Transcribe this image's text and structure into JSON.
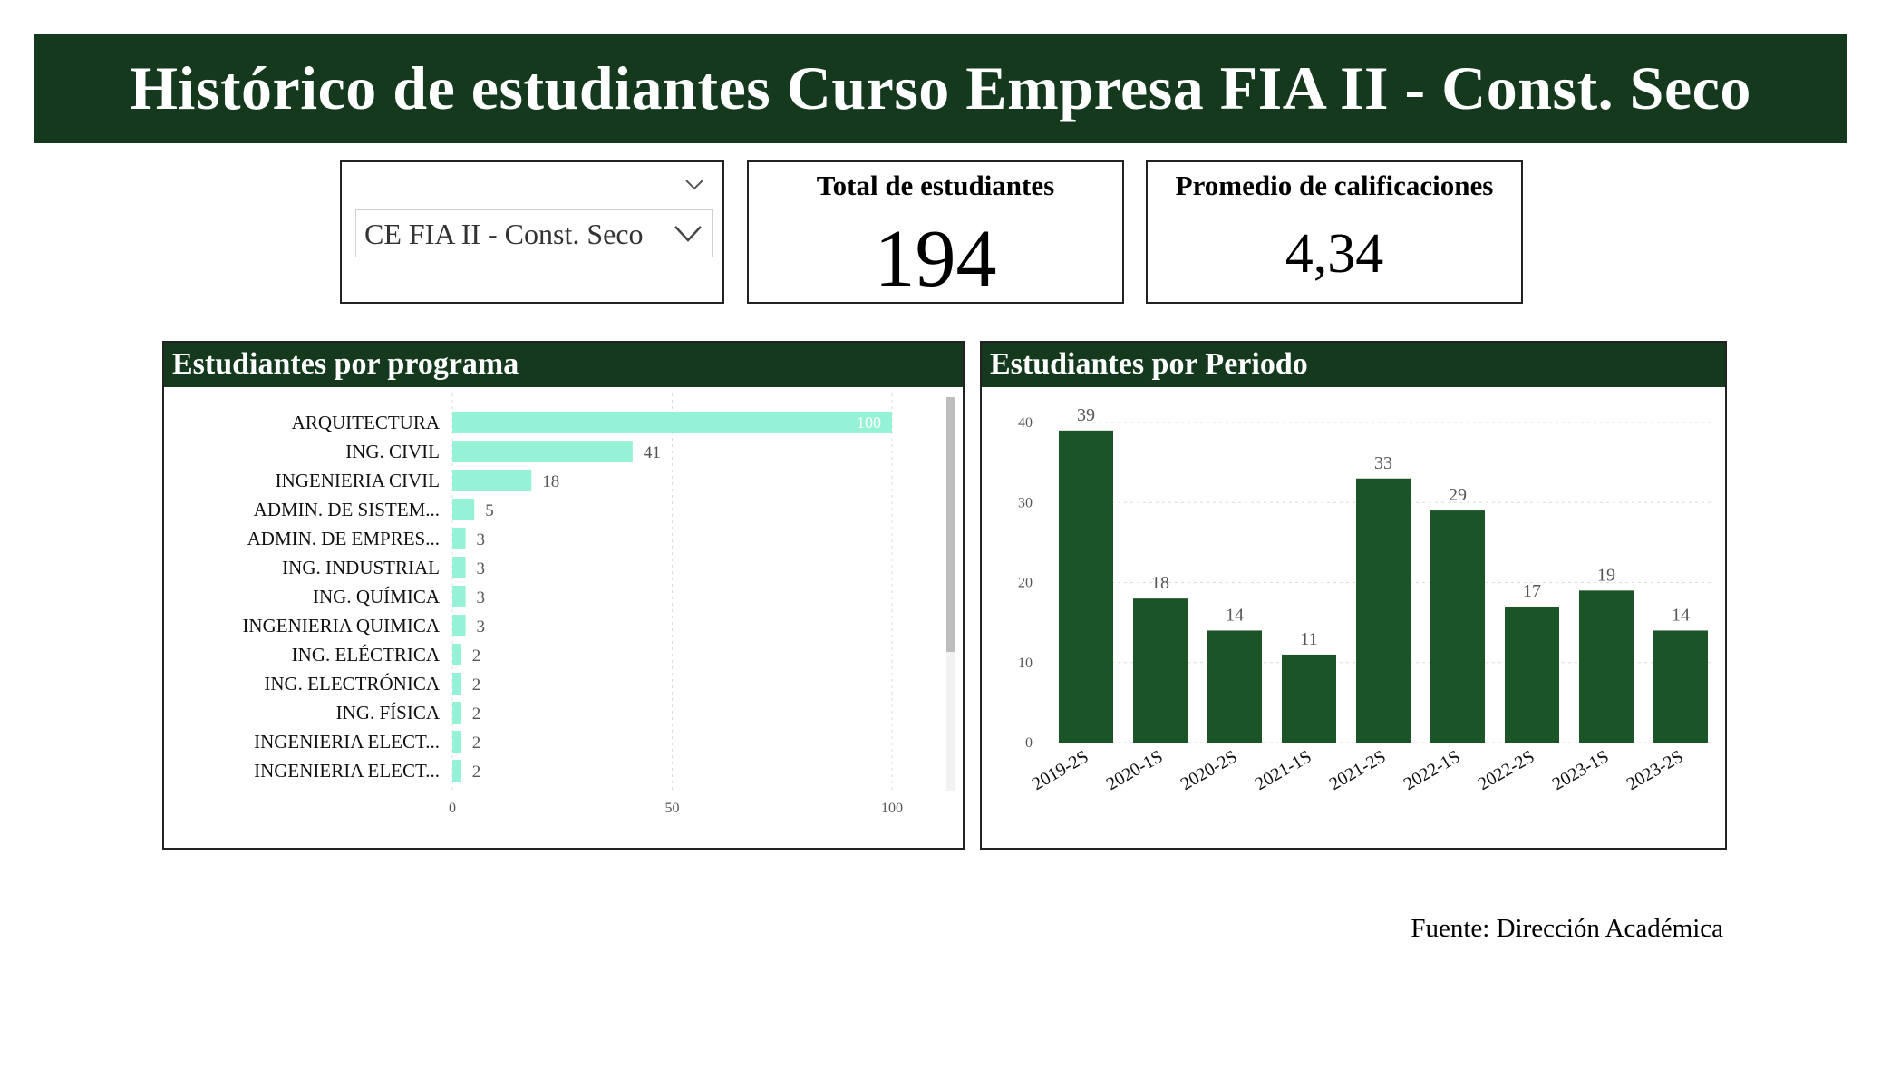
{
  "header": {
    "title": "Histórico de estudiantes Curso Empresa FIA II - Const. Seco"
  },
  "slicer": {
    "selected_value": "CE FIA II - Const. Seco"
  },
  "kpis": {
    "total_label": "Total de estudiantes",
    "total_value": "194",
    "avg_label": "Promedio de calificaciones",
    "avg_value": "4,34"
  },
  "panels": {
    "programa_title": "Estudiantes por programa",
    "periodo_title": "Estudiantes por Periodo"
  },
  "footer": {
    "source": "Fuente: Dirección Académica"
  },
  "colors": {
    "header_bg": "#14391c",
    "bar_programa": "#96f2d6",
    "bar_periodo": "#1b5527"
  },
  "chart_data": [
    {
      "type": "bar",
      "orientation": "horizontal",
      "categories": [
        "ARQUITECTURA",
        "ING. CIVIL",
        "INGENIERIA CIVIL",
        "ADMIN. DE SISTEM...",
        "ADMIN. DE EMPRES...",
        "ING. INDUSTRIAL",
        "ING. QUÍMICA",
        "INGENIERIA QUIMICA",
        "ING. ELÉCTRICA",
        "ING. ELECTRÓNICA",
        "ING. FÍSICA",
        "INGENIERIA ELECT...",
        "INGENIERIA ELECT..."
      ],
      "values": [
        100,
        41,
        18,
        5,
        3,
        3,
        3,
        3,
        2,
        2,
        2,
        2,
        2
      ],
      "xlim": [
        0,
        100
      ],
      "xticks": [
        0,
        50,
        100
      ],
      "grid": true
    },
    {
      "type": "bar",
      "orientation": "vertical",
      "categories": [
        "2019-2S",
        "2020-1S",
        "2020-2S",
        "2021-1S",
        "2021-2S",
        "2022-1S",
        "2022-2S",
        "2023-1S",
        "2023-2S"
      ],
      "values": [
        39,
        18,
        14,
        11,
        33,
        29,
        17,
        19,
        14
      ],
      "ylim": [
        0,
        40
      ],
      "yticks": [
        0,
        10,
        20,
        30,
        40
      ],
      "grid": true
    }
  ]
}
